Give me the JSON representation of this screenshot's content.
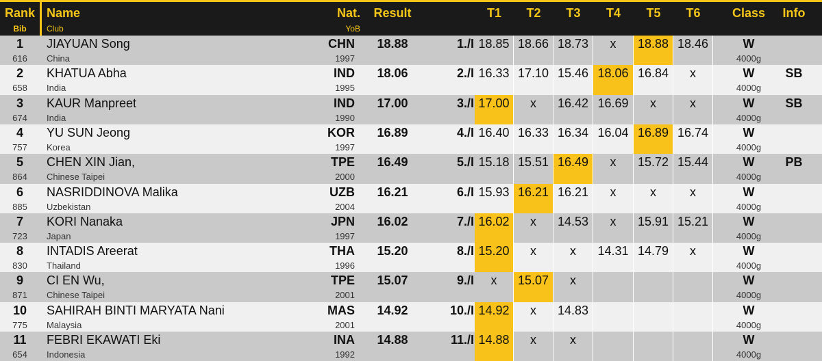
{
  "header": {
    "rank": "Rank",
    "bib": "Bib",
    "name": "Name",
    "club": "Club",
    "nat": "Nat.",
    "yob": "YoB",
    "result": "Result",
    "trials": [
      "T1",
      "T2",
      "T3",
      "T4",
      "T5",
      "T6"
    ],
    "class": "Class",
    "info": "Info"
  },
  "rows": [
    {
      "rank": 1,
      "bib": 616,
      "name": "JIAYUAN Song",
      "club": "China",
      "nat": "CHN",
      "yob": 1997,
      "result": "18.88",
      "place": "1./I",
      "trials": [
        "18.85",
        "18.66",
        "18.73",
        "x",
        "18.88",
        "18.46"
      ],
      "class": "W",
      "weight": "4000g",
      "info": null
    },
    {
      "rank": 2,
      "bib": 658,
      "name": "KHATUA Abha",
      "club": "India",
      "nat": "IND",
      "yob": 1995,
      "result": "18.06",
      "place": "2./I",
      "trials": [
        "16.33",
        "17.10",
        "15.46",
        "18.06",
        "16.84",
        "x"
      ],
      "class": "W",
      "weight": "4000g",
      "info": "SB"
    },
    {
      "rank": 3,
      "bib": 674,
      "name": "KAUR Manpreet",
      "club": "India",
      "nat": "IND",
      "yob": 1990,
      "result": "17.00",
      "place": "3./I",
      "trials": [
        "17.00",
        "x",
        "16.42",
        "16.69",
        "x",
        "x"
      ],
      "class": "W",
      "weight": "4000g",
      "info": "SB"
    },
    {
      "rank": 4,
      "bib": 757,
      "name": "YU SUN Jeong",
      "club": "Korea",
      "nat": "KOR",
      "yob": 1997,
      "result": "16.89",
      "place": "4./I",
      "trials": [
        "16.40",
        "16.33",
        "16.34",
        "16.04",
        "16.89",
        "16.74"
      ],
      "class": "W",
      "weight": "4000g",
      "info": null
    },
    {
      "rank": 5,
      "bib": 864,
      "name": "CHEN XIN Jian,",
      "club": "Chinese Taipei",
      "nat": "TPE",
      "yob": 2000,
      "result": "16.49",
      "place": "5./I",
      "trials": [
        "15.18",
        "15.51",
        "16.49",
        "x",
        "15.72",
        "15.44"
      ],
      "class": "W",
      "weight": "4000g",
      "info": "PB"
    },
    {
      "rank": 6,
      "bib": 885,
      "name": "NASRIDDINOVA Malika",
      "club": "Uzbekistan",
      "nat": "UZB",
      "yob": 2004,
      "result": "16.21",
      "place": "6./I",
      "trials": [
        "15.93",
        "16.21",
        "16.21",
        "x",
        "x",
        "x"
      ],
      "class": "W",
      "weight": "4000g",
      "info": null
    },
    {
      "rank": 7,
      "bib": 723,
      "name": "KORI Nanaka",
      "club": "Japan",
      "nat": "JPN",
      "yob": 1997,
      "result": "16.02",
      "place": "7./I",
      "trials": [
        "16.02",
        "x",
        "14.53",
        "x",
        "15.91",
        "15.21"
      ],
      "class": "W",
      "weight": "4000g",
      "info": null
    },
    {
      "rank": 8,
      "bib": 830,
      "name": "INTADIS Areerat",
      "club": "Thailand",
      "nat": "THA",
      "yob": 1996,
      "result": "15.20",
      "place": "8./I",
      "trials": [
        "15.20",
        "x",
        "x",
        "14.31",
        "14.79",
        "x"
      ],
      "class": "W",
      "weight": "4000g",
      "info": null
    },
    {
      "rank": 9,
      "bib": 871,
      "name": "CI EN Wu,",
      "club": "Chinese Taipei",
      "nat": "TPE",
      "yob": 2001,
      "result": "15.07",
      "place": "9./I",
      "trials": [
        "x",
        "15.07",
        "x",
        null,
        null,
        null
      ],
      "class": "W",
      "weight": "4000g",
      "info": null
    },
    {
      "rank": 10,
      "bib": 775,
      "name": "SAHIRAH BINTI MARYATA Nani",
      "club": "Malaysia",
      "nat": "MAS",
      "yob": 2001,
      "result": "14.92",
      "place": "10./I",
      "trials": [
        "14.92",
        "x",
        "14.83",
        null,
        null,
        null
      ],
      "class": "W",
      "weight": "4000g",
      "info": null
    },
    {
      "rank": 11,
      "bib": 654,
      "name": "FEBRI EKAWATI Eki",
      "club": "Indonesia",
      "nat": "INA",
      "yob": 1992,
      "result": "14.88",
      "place": "11./I",
      "trials": [
        "14.88",
        "x",
        "x",
        null,
        null,
        null
      ],
      "class": "W",
      "weight": "4000g",
      "info": null
    }
  ]
}
